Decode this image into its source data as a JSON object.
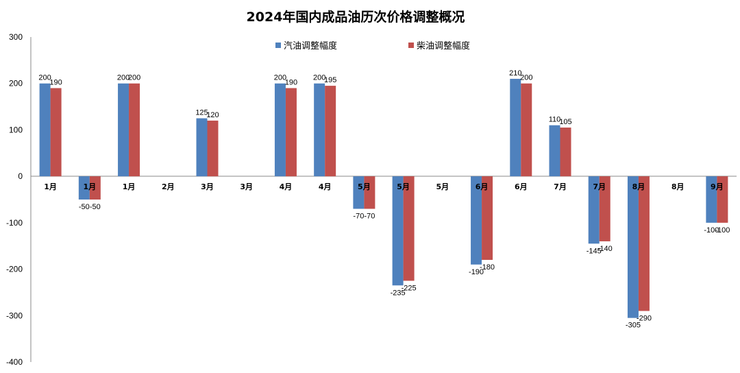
{
  "chart_data": {
    "type": "bar",
    "title": "2024年国内成品油历次价格调整概况",
    "categories": [
      "1月",
      "1月",
      "1月",
      "2月",
      "3月",
      "3月",
      "4月",
      "4月",
      "5月",
      "5月",
      "5月",
      "6月",
      "6月",
      "7月",
      "7月",
      "8月",
      "8月",
      "9月"
    ],
    "series": [
      {
        "name": "汽油调整幅度",
        "color": "#4F81BD",
        "values": [
          200,
          -50,
          200,
          null,
          125,
          null,
          200,
          200,
          -70,
          -235,
          null,
          -190,
          210,
          110,
          -145,
          -305,
          null,
          -100
        ]
      },
      {
        "name": "柴油调整幅度",
        "color": "#C0504D",
        "values": [
          190,
          -50,
          200,
          null,
          120,
          null,
          190,
          195,
          -70,
          -225,
          null,
          -180,
          200,
          105,
          -140,
          -290,
          null,
          -100
        ]
      }
    ],
    "ylim": [
      -400,
      300
    ],
    "yticks": [
      300,
      200,
      100,
      0,
      -100,
      -200,
      -300,
      -400
    ],
    "legend_position": "top",
    "grid": false,
    "xlabel": "",
    "ylabel": ""
  }
}
